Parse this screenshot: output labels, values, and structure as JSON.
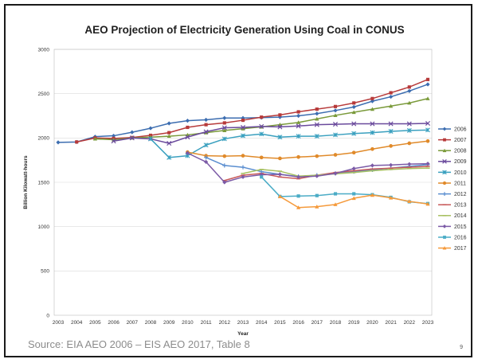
{
  "slide": {
    "source": "Source: EIA AEO 2006 – EIS AEO 2017, Table 8",
    "page_number": "9"
  },
  "chart_data": {
    "type": "line",
    "title": "AEO Projection of Electricity Generation Using Coal in CONUS",
    "xlabel": "Year",
    "ylabel": "Billion Kilowatt-hours",
    "ylim": [
      0,
      3000
    ],
    "yticks": [
      0,
      500,
      1000,
      1500,
      2000,
      2500,
      3000
    ],
    "grid": true,
    "legend_position": "right",
    "x": [
      2003,
      2004,
      2005,
      2006,
      2007,
      2008,
      2009,
      2010,
      2011,
      2012,
      2013,
      2014,
      2015,
      2016,
      2017,
      2018,
      2019,
      2020,
      2021,
      2022,
      2023
    ],
    "series": [
      {
        "name": "2006",
        "color": "#3c6db0",
        "marker": "diamond",
        "values": [
          1950,
          1955,
          2015,
          2025,
          2065,
          2110,
          2165,
          2195,
          2205,
          2225,
          2225,
          2230,
          2235,
          2250,
          2275,
          2310,
          2350,
          2415,
          2465,
          2530,
          2605
        ]
      },
      {
        "name": "2007",
        "color": "#b73a3a",
        "marker": "square",
        "values": [
          null,
          1955,
          2000,
          1995,
          2005,
          2030,
          2060,
          2120,
          2150,
          2170,
          2200,
          2235,
          2260,
          2295,
          2325,
          2355,
          2395,
          2445,
          2510,
          2575,
          2660
        ]
      },
      {
        "name": "2008",
        "color": "#7a9a3a",
        "marker": "triangle",
        "values": [
          null,
          null,
          1990,
          1980,
          2000,
          2010,
          2020,
          2035,
          2060,
          2085,
          2105,
          2125,
          2150,
          2175,
          2215,
          2255,
          2290,
          2325,
          2360,
          2395,
          2445
        ]
      },
      {
        "name": "2009",
        "color": "#6a4a9c",
        "marker": "x",
        "values": [
          null,
          null,
          null,
          1965,
          2000,
          1990,
          1940,
          2010,
          2070,
          2115,
          2120,
          2130,
          2125,
          2135,
          2150,
          2155,
          2160,
          2160,
          2160,
          2160,
          2165
        ]
      },
      {
        "name": "2010",
        "color": "#3aa0bf",
        "marker": "star",
        "values": [
          null,
          null,
          null,
          null,
          null,
          1990,
          1780,
          1800,
          1920,
          1990,
          2025,
          2045,
          2010,
          2020,
          2020,
          2035,
          2050,
          2060,
          2075,
          2085,
          2090
        ]
      },
      {
        "name": "2011",
        "color": "#e08a2a",
        "marker": "circle",
        "values": [
          null,
          null,
          null,
          null,
          null,
          null,
          null,
          1840,
          1800,
          1795,
          1800,
          1780,
          1770,
          1785,
          1795,
          1810,
          1835,
          1875,
          1910,
          1940,
          1965
        ]
      },
      {
        "name": "2012",
        "color": "#5a8ed0",
        "marker": "plus",
        "values": [
          null,
          null,
          null,
          null,
          null,
          null,
          null,
          null,
          1780,
          1690,
          1670,
          1620,
          1590,
          1565,
          1580,
          1600,
          1620,
          1640,
          1660,
          1680,
          1700
        ]
      },
      {
        "name": "2013",
        "color": "#c85a5a",
        "marker": "dash",
        "values": [
          null,
          null,
          null,
          null,
          null,
          null,
          null,
          null,
          null,
          1520,
          1580,
          1600,
          1560,
          1540,
          1580,
          1610,
          1630,
          1650,
          1660,
          1670,
          1680
        ]
      },
      {
        "name": "2014",
        "color": "#a7c060",
        "marker": "dash",
        "values": [
          null,
          null,
          null,
          null,
          null,
          null,
          null,
          null,
          null,
          null,
          1600,
          1645,
          1625,
          1570,
          1580,
          1595,
          1610,
          1630,
          1645,
          1655,
          1660
        ]
      },
      {
        "name": "2015",
        "color": "#7b5aa6",
        "marker": "diamond",
        "values": [
          null,
          null,
          null,
          null,
          null,
          null,
          null,
          1830,
          1730,
          1500,
          1560,
          1585,
          1590,
          1560,
          1570,
          1600,
          1655,
          1690,
          1695,
          1705,
          1710
        ]
      },
      {
        "name": "2016",
        "color": "#4bacc6",
        "marker": "square",
        "values": [
          null,
          null,
          null,
          null,
          null,
          null,
          null,
          null,
          null,
          null,
          null,
          1560,
          1340,
          1345,
          1350,
          1370,
          1370,
          1360,
          1330,
          1280,
          1260
        ]
      },
      {
        "name": "2017",
        "color": "#f59a3b",
        "marker": "triangle",
        "values": [
          null,
          null,
          null,
          null,
          null,
          null,
          null,
          null,
          null,
          null,
          null,
          null,
          1340,
          1215,
          1225,
          1250,
          1320,
          1355,
          1325,
          1285,
          1255
        ]
      }
    ]
  }
}
